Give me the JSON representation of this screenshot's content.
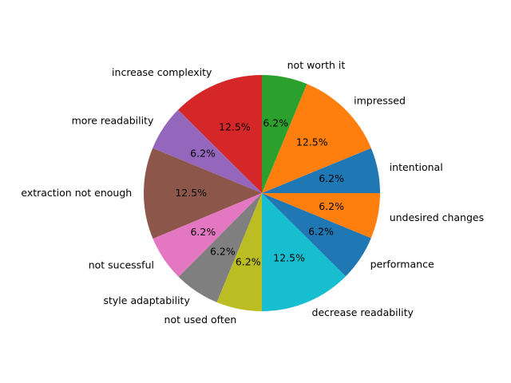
{
  "chart_data": {
    "type": "pie",
    "counts_note_free": true,
    "slices": [
      {
        "label": "intentional",
        "value": 6.2,
        "pct_text": "6.2%",
        "color": "#1f77b4"
      },
      {
        "label": "impressed",
        "value": 12.5,
        "pct_text": "12.5%",
        "color": "#ff7f0e"
      },
      {
        "label": "not worth it",
        "value": 6.2,
        "pct_text": "6.2%",
        "color": "#2ca02c"
      },
      {
        "label": "increase complexity",
        "value": 12.5,
        "pct_text": "12.5%",
        "color": "#d62728"
      },
      {
        "label": "more readability",
        "value": 6.2,
        "pct_text": "6.2%",
        "color": "#9467bd"
      },
      {
        "label": "extraction not enough",
        "value": 12.5,
        "pct_text": "12.5%",
        "color": "#8c564b"
      },
      {
        "label": "not sucessful",
        "value": 6.2,
        "pct_text": "6.2%",
        "color": "#e377c2"
      },
      {
        "label": "style adaptability",
        "value": 6.2,
        "pct_text": "6.2%",
        "color": "#7f7f7f"
      },
      {
        "label": "not used often",
        "value": 6.2,
        "pct_text": "6.2%",
        "color": "#bcbd22"
      },
      {
        "label": "decrease readability",
        "value": 12.5,
        "pct_text": "12.5%",
        "color": "#17becf"
      },
      {
        "label": "performance",
        "value": 6.2,
        "pct_text": "6.2%",
        "color": "#1f77b4"
      },
      {
        "label": "undesired changes",
        "value": 6.2,
        "pct_text": "6.2%",
        "color": "#ff7f0e"
      }
    ],
    "start_angle_deg": 0,
    "direction": "counterclockwise",
    "legend": "none"
  }
}
